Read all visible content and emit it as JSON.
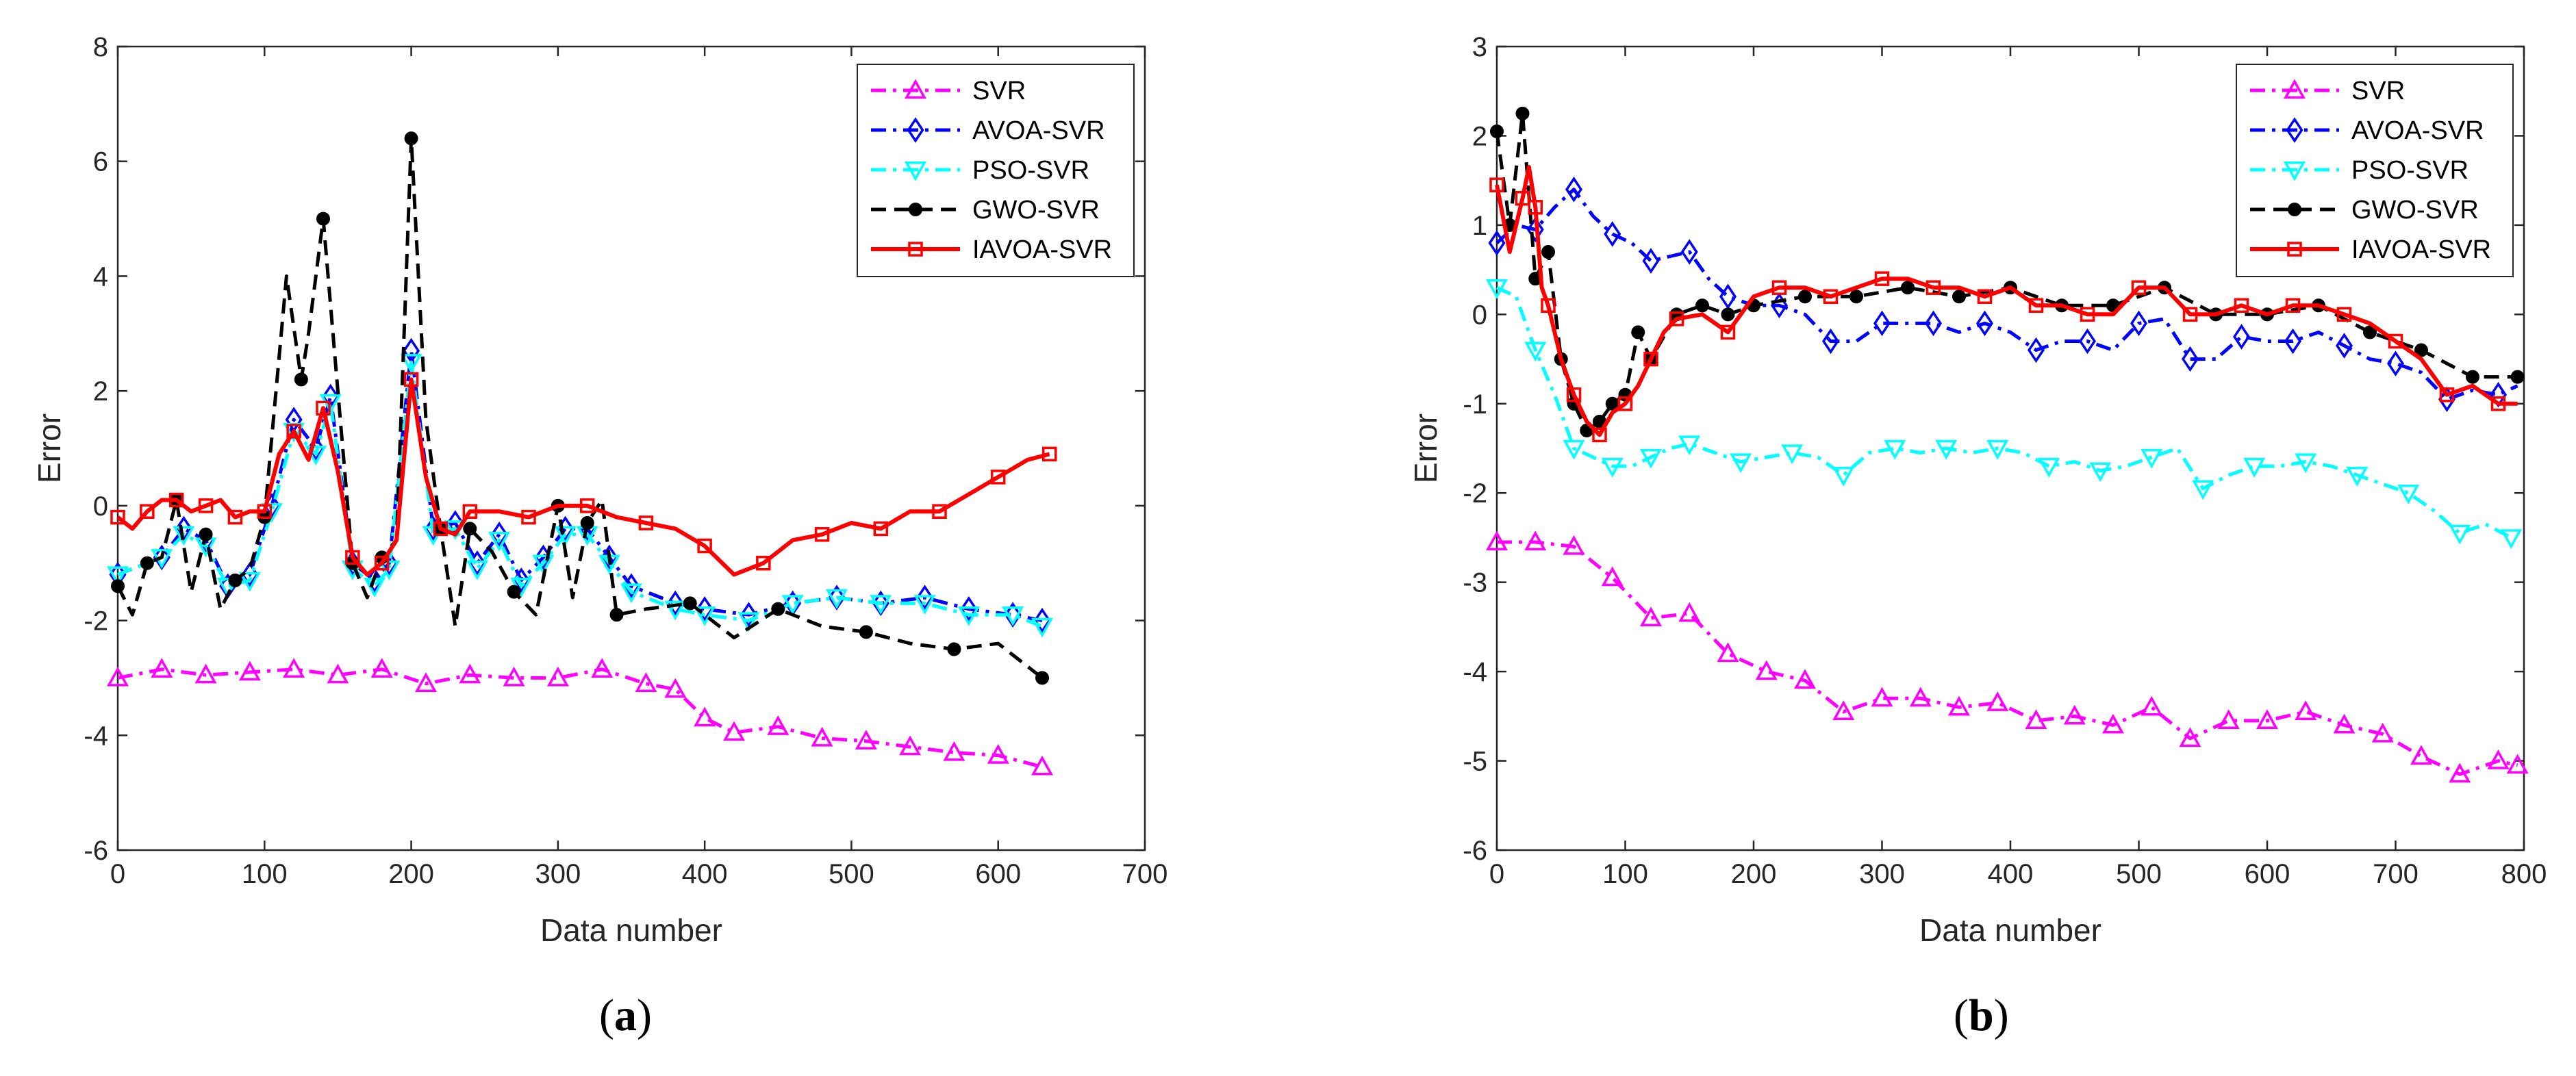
{
  "colors": {
    "SVR": "#ff00ff",
    "AVOA-SVR": "#0000ff",
    "PSO-SVR": "#00ffff",
    "GWO-SVR": "#000000",
    "IAVOA-SVR": "#ff0000"
  },
  "chart_data": [
    {
      "type": "line",
      "panel": "a",
      "xlabel": "Data number",
      "ylabel": "Error",
      "xlim": [
        0,
        700
      ],
      "ylim": [
        -6,
        8
      ],
      "xticks": [
        0,
        100,
        200,
        300,
        400,
        500,
        600,
        700
      ],
      "yticks": [
        -6,
        -4,
        -2,
        0,
        2,
        4,
        6,
        8
      ],
      "legend_position": "top-right",
      "series": [
        {
          "name": "SVR",
          "marker": "triangle-up",
          "style": "dashdot",
          "x": [
            0,
            30,
            60,
            90,
            120,
            150,
            180,
            210,
            240,
            270,
            300,
            330,
            360,
            380,
            400,
            420,
            450,
            480,
            510,
            540,
            570,
            600,
            630
          ],
          "y": [
            -3.0,
            -2.85,
            -2.95,
            -2.9,
            -2.85,
            -2.95,
            -2.85,
            -3.1,
            -2.95,
            -3.0,
            -3.0,
            -2.85,
            -3.1,
            -3.2,
            -3.7,
            -3.95,
            -3.85,
            -4.05,
            -4.1,
            -4.2,
            -4.3,
            -4.35,
            -4.55
          ]
        },
        {
          "name": "AVOA-SVR",
          "marker": "diamond",
          "style": "dashdot",
          "x": [
            0,
            30,
            45,
            60,
            75,
            90,
            105,
            120,
            135,
            145,
            160,
            175,
            185,
            200,
            215,
            230,
            245,
            260,
            275,
            290,
            305,
            320,
            335,
            350,
            380,
            400,
            430,
            460,
            490,
            520,
            550,
            580,
            610,
            630
          ],
          "y": [
            -1.2,
            -0.9,
            -0.4,
            -0.6,
            -1.4,
            -1.2,
            0.0,
            1.5,
            1.0,
            1.9,
            -1.0,
            -1.3,
            -1.0,
            2.7,
            -0.4,
            -0.3,
            -1.0,
            -0.5,
            -1.3,
            -0.9,
            -0.4,
            -0.4,
            -0.9,
            -1.4,
            -1.7,
            -1.8,
            -1.9,
            -1.7,
            -1.6,
            -1.7,
            -1.6,
            -1.8,
            -1.9,
            -2.0
          ]
        },
        {
          "name": "PSO-SVR",
          "marker": "triangle-down",
          "style": "dashdot",
          "x": [
            0,
            30,
            45,
            60,
            75,
            90,
            105,
            120,
            135,
            145,
            160,
            175,
            185,
            200,
            215,
            230,
            245,
            260,
            275,
            290,
            305,
            320,
            335,
            350,
            380,
            400,
            430,
            460,
            490,
            520,
            550,
            580,
            610,
            630
          ],
          "y": [
            -1.2,
            -0.9,
            -0.5,
            -0.7,
            -1.4,
            -1.3,
            -0.1,
            1.3,
            0.9,
            1.8,
            -1.1,
            -1.4,
            -1.1,
            2.5,
            -0.5,
            -0.4,
            -1.1,
            -0.6,
            -1.4,
            -1.0,
            -0.5,
            -0.5,
            -1.0,
            -1.5,
            -1.8,
            -1.9,
            -2.0,
            -1.7,
            -1.6,
            -1.7,
            -1.7,
            -1.9,
            -1.9,
            -2.1
          ]
        },
        {
          "name": "GWO-SVR",
          "marker": "filled-circle",
          "style": "dashed",
          "x": [
            0,
            10,
            20,
            30,
            40,
            50,
            60,
            70,
            80,
            90,
            100,
            115,
            125,
            130,
            140,
            150,
            160,
            170,
            180,
            190,
            200,
            210,
            220,
            230,
            240,
            255,
            270,
            285,
            300,
            310,
            320,
            330,
            340,
            360,
            390,
            420,
            450,
            480,
            510,
            540,
            570,
            600,
            630
          ],
          "y": [
            -1.4,
            -1.9,
            -1.0,
            -0.9,
            0.1,
            -1.5,
            -0.5,
            -1.8,
            -1.3,
            -1.1,
            -0.2,
            4.0,
            2.2,
            3.0,
            5.0,
            2.0,
            -1.0,
            -1.6,
            -0.9,
            -0.6,
            6.4,
            1.5,
            -0.4,
            -2.1,
            -0.4,
            -0.8,
            -1.5,
            -1.9,
            0.0,
            -1.6,
            -0.3,
            0.1,
            -1.9,
            -1.8,
            -1.7,
            -2.3,
            -1.8,
            -2.1,
            -2.2,
            -2.4,
            -2.5,
            -2.4,
            -3.0
          ]
        },
        {
          "name": "IAVOA-SVR",
          "marker": "square",
          "style": "solid",
          "x": [
            0,
            10,
            20,
            30,
            40,
            50,
            60,
            70,
            80,
            90,
            100,
            110,
            120,
            130,
            140,
            150,
            160,
            170,
            180,
            190,
            200,
            210,
            220,
            230,
            240,
            260,
            280,
            300,
            320,
            340,
            360,
            380,
            400,
            420,
            440,
            460,
            480,
            500,
            520,
            540,
            560,
            580,
            600,
            620,
            635
          ],
          "y": [
            -0.2,
            -0.4,
            -0.1,
            0.1,
            0.1,
            -0.1,
            0.0,
            0.1,
            -0.2,
            -0.1,
            -0.1,
            0.9,
            1.3,
            0.8,
            1.7,
            0.6,
            -0.9,
            -1.2,
            -1.0,
            -0.6,
            2.2,
            0.5,
            -0.4,
            -0.5,
            -0.1,
            -0.1,
            -0.2,
            0.0,
            0.0,
            -0.2,
            -0.3,
            -0.4,
            -0.7,
            -1.2,
            -1.0,
            -0.6,
            -0.5,
            -0.3,
            -0.4,
            -0.1,
            -0.1,
            0.2,
            0.5,
            0.8,
            0.9
          ]
        }
      ]
    },
    {
      "type": "line",
      "panel": "b",
      "xlabel": "Data number",
      "ylabel": "Error",
      "xlim": [
        0,
        800
      ],
      "ylim": [
        -6,
        3
      ],
      "xticks": [
        0,
        100,
        200,
        300,
        400,
        500,
        600,
        700,
        800
      ],
      "yticks": [
        -6,
        -5,
        -4,
        -3,
        -2,
        -1,
        0,
        1,
        2,
        3
      ],
      "legend_position": "top-right",
      "series": [
        {
          "name": "SVR",
          "marker": "triangle-up",
          "style": "dashdot",
          "x": [
            0,
            30,
            60,
            90,
            120,
            150,
            180,
            210,
            240,
            270,
            300,
            330,
            360,
            390,
            420,
            450,
            480,
            510,
            540,
            570,
            600,
            630,
            660,
            690,
            720,
            750,
            780,
            795
          ],
          "y": [
            -2.55,
            -2.55,
            -2.6,
            -2.95,
            -3.4,
            -3.35,
            -3.8,
            -4.0,
            -4.1,
            -4.45,
            -4.3,
            -4.3,
            -4.4,
            -4.35,
            -4.55,
            -4.5,
            -4.6,
            -4.4,
            -4.75,
            -4.55,
            -4.55,
            -4.45,
            -4.6,
            -4.7,
            -4.95,
            -5.15,
            -5.0,
            -5.05
          ]
        },
        {
          "name": "AVOA-SVR",
          "marker": "diamond",
          "style": "dashdot",
          "x": [
            0,
            15,
            30,
            45,
            60,
            75,
            90,
            105,
            120,
            135,
            150,
            165,
            180,
            200,
            220,
            240,
            260,
            280,
            300,
            320,
            340,
            360,
            380,
            400,
            420,
            440,
            460,
            480,
            500,
            520,
            540,
            560,
            580,
            600,
            620,
            640,
            660,
            680,
            700,
            720,
            740,
            760,
            780,
            795
          ],
          "y": [
            0.8,
            1.0,
            0.95,
            1.2,
            1.4,
            1.1,
            0.9,
            0.8,
            0.6,
            0.65,
            0.7,
            0.4,
            0.2,
            0.1,
            0.1,
            0.0,
            -0.3,
            -0.3,
            -0.1,
            -0.1,
            -0.1,
            -0.2,
            -0.1,
            -0.2,
            -0.4,
            -0.3,
            -0.3,
            -0.4,
            -0.1,
            -0.05,
            -0.5,
            -0.5,
            -0.25,
            -0.3,
            -0.3,
            -0.2,
            -0.35,
            -0.5,
            -0.55,
            -0.65,
            -0.95,
            -0.85,
            -0.9,
            -0.8
          ]
        },
        {
          "name": "PSO-SVR",
          "marker": "triangle-down",
          "style": "dashdot",
          "x": [
            0,
            15,
            30,
            45,
            60,
            75,
            90,
            105,
            120,
            135,
            150,
            170,
            190,
            210,
            230,
            250,
            270,
            290,
            310,
            330,
            350,
            370,
            390,
            410,
            430,
            450,
            470,
            490,
            510,
            530,
            550,
            570,
            590,
            610,
            630,
            650,
            670,
            690,
            710,
            730,
            750,
            770,
            790
          ],
          "y": [
            0.3,
            0.2,
            -0.4,
            -0.9,
            -1.5,
            -1.6,
            -1.7,
            -1.7,
            -1.6,
            -1.5,
            -1.45,
            -1.55,
            -1.65,
            -1.6,
            -1.55,
            -1.6,
            -1.8,
            -1.55,
            -1.5,
            -1.55,
            -1.5,
            -1.55,
            -1.5,
            -1.55,
            -1.7,
            -1.65,
            -1.75,
            -1.7,
            -1.6,
            -1.5,
            -1.95,
            -1.8,
            -1.7,
            -1.7,
            -1.65,
            -1.7,
            -1.8,
            -1.9,
            -2.0,
            -2.2,
            -2.45,
            -2.35,
            -2.5
          ]
        },
        {
          "name": "GWO-SVR",
          "marker": "filled-circle",
          "style": "dashed",
          "x": [
            0,
            10,
            20,
            30,
            40,
            50,
            60,
            70,
            80,
            90,
            100,
            110,
            120,
            140,
            160,
            180,
            200,
            240,
            280,
            320,
            360,
            400,
            440,
            480,
            520,
            560,
            600,
            640,
            680,
            720,
            760,
            795
          ],
          "y": [
            2.05,
            1.0,
            2.25,
            0.4,
            0.7,
            -0.5,
            -1.0,
            -1.3,
            -1.2,
            -1.0,
            -0.9,
            -0.2,
            -0.5,
            0.0,
            0.1,
            0.0,
            0.1,
            0.2,
            0.2,
            0.3,
            0.2,
            0.3,
            0.1,
            0.1,
            0.3,
            0.0,
            0.0,
            0.1,
            -0.2,
            -0.4,
            -0.7,
            -0.7
          ]
        },
        {
          "name": "IAVOA-SVR",
          "marker": "square",
          "style": "solid",
          "x": [
            0,
            10,
            20,
            25,
            30,
            35,
            40,
            50,
            60,
            70,
            80,
            90,
            100,
            110,
            120,
            130,
            140,
            160,
            180,
            200,
            220,
            240,
            260,
            280,
            300,
            320,
            340,
            360,
            380,
            400,
            420,
            440,
            460,
            480,
            500,
            520,
            540,
            560,
            580,
            600,
            620,
            640,
            660,
            680,
            700,
            720,
            740,
            760,
            780,
            795
          ],
          "y": [
            1.45,
            0.7,
            1.3,
            1.65,
            1.2,
            0.3,
            0.1,
            -0.5,
            -0.9,
            -1.2,
            -1.35,
            -1.1,
            -1.0,
            -0.8,
            -0.5,
            -0.2,
            -0.05,
            0.0,
            -0.2,
            0.2,
            0.3,
            0.3,
            0.2,
            0.3,
            0.4,
            0.4,
            0.3,
            0.3,
            0.2,
            0.3,
            0.1,
            0.1,
            0.0,
            0.0,
            0.3,
            0.3,
            0.0,
            0.0,
            0.1,
            0.0,
            0.1,
            0.1,
            0.0,
            -0.1,
            -0.3,
            -0.5,
            -0.9,
            -0.8,
            -1.0,
            -1.0
          ]
        }
      ]
    }
  ],
  "panel_labels": [
    {
      "open": "(",
      "letter": "a",
      "close": ")"
    },
    {
      "open": "(",
      "letter": "b",
      "close": ")"
    }
  ]
}
